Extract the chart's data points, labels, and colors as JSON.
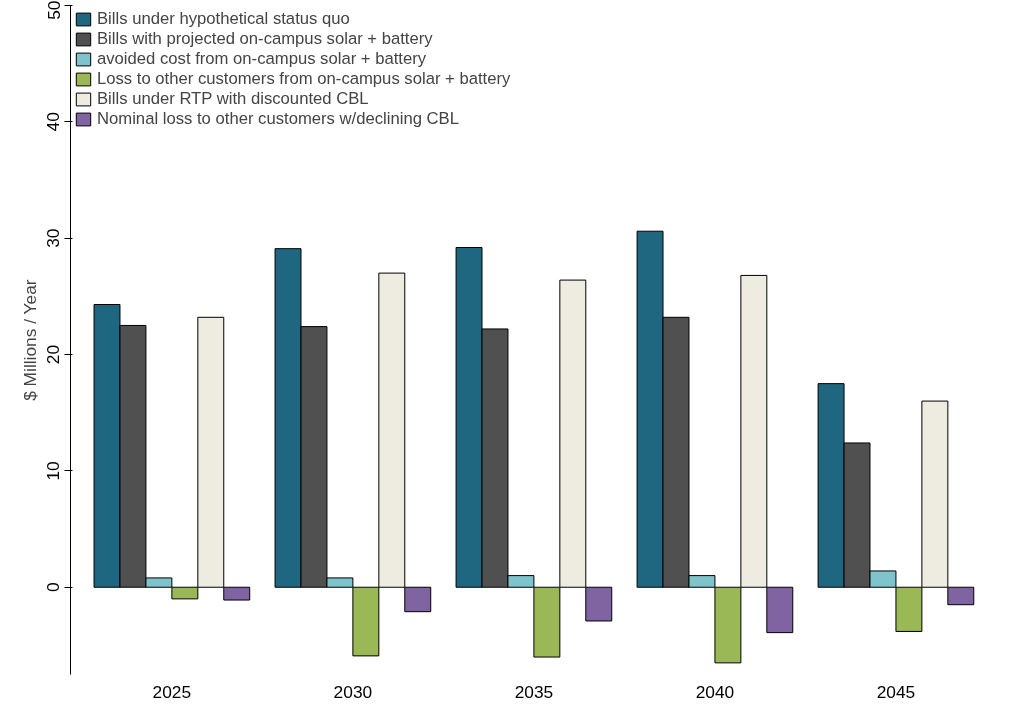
{
  "chart_data": {
    "type": "bar",
    "ylabel": "$ Millions / Year",
    "categories": [
      "2025",
      "2030",
      "2035",
      "2040",
      "2045"
    ],
    "series": [
      {
        "name": "Bills under hypothetical status quo",
        "color": "#1f6680",
        "values": [
          24.3,
          29.1,
          29.2,
          30.6,
          17.5
        ]
      },
      {
        "name": "Bills with projected on-campus solar + battery",
        "color": "#505050",
        "values": [
          22.5,
          22.4,
          22.2,
          23.2,
          12.4
        ]
      },
      {
        "name": "avoided cost from on-campus solar + battery",
        "color": "#7fc4cc",
        "values": [
          0.8,
          0.8,
          1.0,
          1.0,
          1.4
        ]
      },
      {
        "name": "Loss to other customers from on-campus solar + battery",
        "color": "#9bb857",
        "values": [
          -1.0,
          -5.9,
          -6.0,
          -6.5,
          -3.8
        ]
      },
      {
        "name": "Bills under RTP with discounted CBL",
        "color": "#eeebe0",
        "values": [
          23.2,
          27.0,
          26.4,
          26.8,
          16.0
        ]
      },
      {
        "name": "Nominal loss to other customers w/declining CBL",
        "color": "#8064a2",
        "values": [
          -1.1,
          -2.1,
          -2.9,
          -3.9,
          -1.5
        ]
      }
    ],
    "ylim": [
      -7.5,
      50
    ],
    "yticks": [
      0,
      10,
      20,
      30,
      40,
      50
    ],
    "grid": false,
    "legend": "top left"
  }
}
